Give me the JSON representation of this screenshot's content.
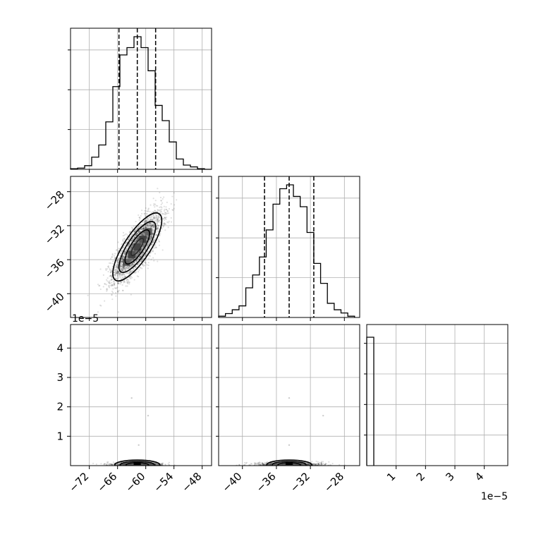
{
  "chart_data": {
    "type": "corner",
    "parameters": [
      {
        "name": "",
        "range": [
          -76,
          -46
        ],
        "ticks": [
          -72,
          -66,
          -60,
          -54,
          -48
        ],
        "tick_labels": [
          "−72",
          "−66",
          "−60",
          "−54",
          "−48"
        ]
      },
      {
        "name": "",
        "range": [
          -42.8,
          -26.2
        ],
        "ticks": [
          -40,
          -36,
          -32,
          -28
        ],
        "tick_labels": [
          "−40",
          "−36",
          "−32",
          "−28"
        ]
      },
      {
        "name": "",
        "range": [
          0,
          4.8
        ],
        "ticks": [
          1,
          2,
          3,
          4
        ],
        "tick_labels": [
          "1",
          "2",
          "3",
          "4"
        ],
        "offset_text": "1e−5"
      }
    ],
    "left_offset_text": "1e−5",
    "grid": true,
    "histograms": [
      {
        "param": 0,
        "bins": [
          -76,
          -74.5,
          -73,
          -71.5,
          -70,
          -68.5,
          -67,
          -65.5,
          -64,
          -62.5,
          -61,
          -59.5,
          -58,
          -56.5,
          -55,
          -53.5,
          -52,
          -50.5,
          -49,
          -47.5,
          -46
        ],
        "counts": [
          5,
          10,
          30,
          100,
          200,
          390,
          680,
          940,
          1000,
          1090,
          1000,
          810,
          525,
          400,
          225,
          85,
          35,
          20,
          5,
          0
        ],
        "quantiles": [
          -65.7,
          -61.8,
          -57.9
        ]
      },
      {
        "param": 1,
        "bins": [
          -42.8,
          -42.0,
          -41.2,
          -40.4,
          -39.6,
          -38.8,
          -38.0,
          -37.2,
          -36.4,
          -35.6,
          -34.8,
          -34.0,
          -33.2,
          -32.4,
          -31.6,
          -30.8,
          -30.0,
          -29.2,
          -28.4,
          -27.6,
          -26.8
        ],
        "counts": [
          10,
          30,
          60,
          90,
          230,
          330,
          470,
          680,
          880,
          1000,
          1030,
          940,
          860,
          660,
          420,
          265,
          110,
          60,
          35,
          10
        ],
        "quantiles": [
          -37.4,
          -34.5,
          -31.6
        ]
      },
      {
        "param": 2,
        "bins": [
          0,
          0.24
        ],
        "counts": [
          1000
        ],
        "quantiles": []
      }
    ],
    "joint": [
      {
        "x_param": 0,
        "y_param": 1,
        "center": [
          -61.8,
          -34.5
        ],
        "sigma": [
          2.6,
          2.0
        ],
        "correlation": 0.78,
        "n_points": 3000,
        "contour_levels_sigma": [
          0.5,
          1.0,
          1.5,
          2.0
        ]
      },
      {
        "x_param": 0,
        "y_param": 2,
        "center": [
          -61.8,
          0.06
        ],
        "spread": [
          2.6,
          0.05
        ]
      },
      {
        "x_param": 1,
        "y_param": 2,
        "center": [
          -34.5,
          0.06
        ],
        "spread": [
          2.0,
          0.05
        ]
      }
    ],
    "outliers_param2": [
      {
        "x0": -63,
        "x1": -34.5,
        "y": 2.3
      },
      {
        "x0": -59.5,
        "x1": -30.5,
        "y": 1.7
      },
      {
        "x0": -61.5,
        "x1": -34.5,
        "y": 0.7
      }
    ]
  }
}
